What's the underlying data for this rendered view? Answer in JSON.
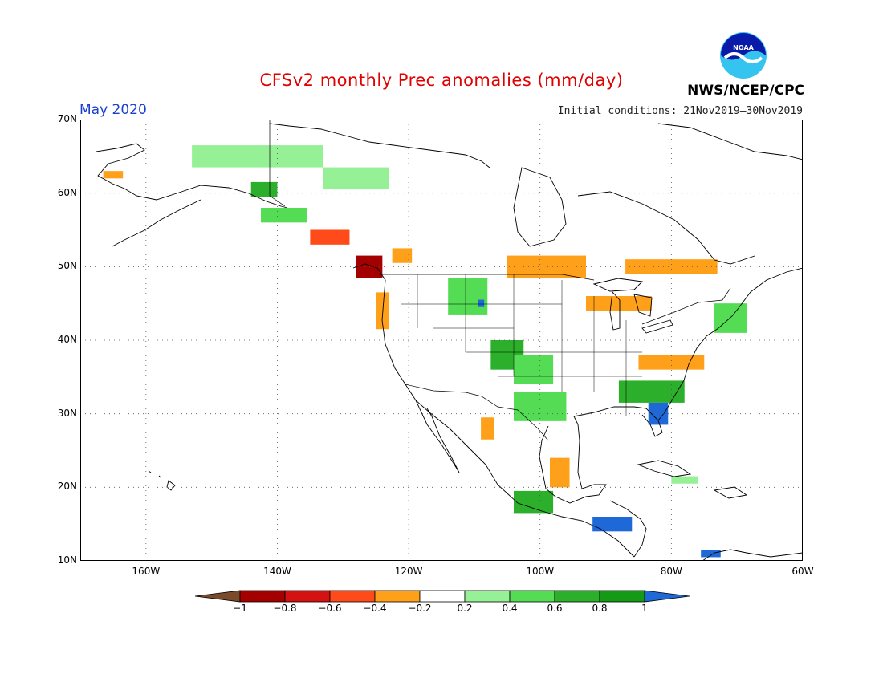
{
  "header": {
    "title": "CFSv2 monthly Prec anomalies (mm/day)",
    "month": "May 2020",
    "initial_conditions": "Initial conditions: 21Nov2019–30Nov2019",
    "agency": "NWS/NCEP/CPC",
    "logo_text": "NOAA"
  },
  "axes": {
    "lat_ticks": [
      {
        "value": 70,
        "label": "70N"
      },
      {
        "value": 60,
        "label": "60N"
      },
      {
        "value": 50,
        "label": "50N"
      },
      {
        "value": 40,
        "label": "40N"
      },
      {
        "value": 30,
        "label": "30N"
      },
      {
        "value": 20,
        "label": "20N"
      },
      {
        "value": 10,
        "label": "10N"
      }
    ],
    "lon_ticks": [
      {
        "value": -160,
        "label": "160W"
      },
      {
        "value": -140,
        "label": "140W"
      },
      {
        "value": -120,
        "label": "120W"
      },
      {
        "value": -100,
        "label": "100W"
      },
      {
        "value": -80,
        "label": "80W"
      },
      {
        "value": -60,
        "label": "60W"
      }
    ],
    "lon_range": [
      -170,
      -60
    ],
    "lat_range": [
      10,
      70
    ],
    "grid": true
  },
  "colorbar": {
    "colors": [
      "#7b4a2a",
      "#a40000",
      "#d51212",
      "#ff4a1a",
      "#ffa01a",
      "#ffffff",
      "#96f096",
      "#54dc54",
      "#2cb02c",
      "#149a14",
      "#1e68d8"
    ],
    "labels": [
      "−1",
      "−0.8",
      "−0.6",
      "−0.4",
      "−0.2",
      "0.2",
      "0.4",
      "0.6",
      "0.8",
      "1"
    ]
  },
  "anomaly_regions": [
    {
      "name": "alaska-west",
      "lon": -165,
      "lat": 62.5,
      "w": 3,
      "h": 1,
      "value": -0.3
    },
    {
      "name": "yukon-north",
      "lon": -143,
      "lat": 65,
      "w": 20,
      "h": 3,
      "value": 0.3
    },
    {
      "name": "nw-territories",
      "lon": -128,
      "lat": 62,
      "w": 10,
      "h": 3,
      "value": 0.3
    },
    {
      "name": "se-alaska",
      "lon": -142,
      "lat": 60.5,
      "w": 4,
      "h": 2,
      "value": 0.6
    },
    {
      "name": "alaska-panhandle",
      "lon": -139,
      "lat": 57,
      "w": 7,
      "h": 2,
      "value": 0.4
    },
    {
      "name": "pacific-northwest-coast",
      "lon": -126,
      "lat": 50,
      "w": 4,
      "h": 3,
      "value": -0.9
    },
    {
      "name": "bc-coast",
      "lon": -132,
      "lat": 54,
      "w": 6,
      "h": 2,
      "value": -0.5
    },
    {
      "name": "oregon-coast",
      "lon": -124,
      "lat": 44,
      "w": 2,
      "h": 5,
      "value": -0.3
    },
    {
      "name": "alberta",
      "lon": -121,
      "lat": 51.5,
      "w": 3,
      "h": 2,
      "value": -0.3
    },
    {
      "name": "montana-wyoming",
      "lon": -111,
      "lat": 46,
      "w": 6,
      "h": 5,
      "value": 0.4
    },
    {
      "name": "wyoming-blue",
      "lon": -109,
      "lat": 45,
      "w": 1,
      "h": 1,
      "value": 1.0
    },
    {
      "name": "colorado",
      "lon": -105,
      "lat": 38,
      "w": 5,
      "h": 4,
      "value": 0.7
    },
    {
      "name": "kansas-oklahoma",
      "lon": -101,
      "lat": 36,
      "w": 6,
      "h": 4,
      "value": 0.5
    },
    {
      "name": "texas",
      "lon": -100,
      "lat": 31,
      "w": 8,
      "h": 4,
      "value": 0.4
    },
    {
      "name": "canadian-prairies",
      "lon": -99,
      "lat": 50,
      "w": 12,
      "h": 3,
      "value": -0.4
    },
    {
      "name": "ontario-quebec",
      "lon": -80,
      "lat": 50,
      "w": 14,
      "h": 2,
      "value": -0.4
    },
    {
      "name": "great-lakes",
      "lon": -88,
      "lat": 45,
      "w": 10,
      "h": 2,
      "value": -0.3
    },
    {
      "name": "ohio-valley",
      "lon": -80,
      "lat": 37,
      "w": 10,
      "h": 2,
      "value": -0.3
    },
    {
      "name": "southeast",
      "lon": -83,
      "lat": 33,
      "w": 10,
      "h": 3,
      "value": 0.7
    },
    {
      "name": "florida",
      "lon": -82,
      "lat": 30,
      "w": 3,
      "h": 3,
      "value": 1.0
    },
    {
      "name": "new-england",
      "lon": -71,
      "lat": 43,
      "w": 5,
      "h": 4,
      "value": 0.5
    },
    {
      "name": "mexico-west",
      "lon": -108,
      "lat": 28,
      "w": 2,
      "h": 3,
      "value": -0.3
    },
    {
      "name": "mexico-gulf",
      "lon": -97,
      "lat": 22,
      "w": 3,
      "h": 4,
      "value": -0.4
    },
    {
      "name": "mexico-south",
      "lon": -101,
      "lat": 18,
      "w": 6,
      "h": 3,
      "value": 0.7
    },
    {
      "name": "central-america",
      "lon": -89,
      "lat": 15,
      "w": 6,
      "h": 2,
      "value": 1.0
    },
    {
      "name": "cuba",
      "lon": -78,
      "lat": 21,
      "w": 4,
      "h": 1,
      "value": 0.3
    },
    {
      "name": "caribbean-south",
      "lon": -74,
      "lat": 11,
      "w": 3,
      "h": 1,
      "value": 1.0
    }
  ]
}
